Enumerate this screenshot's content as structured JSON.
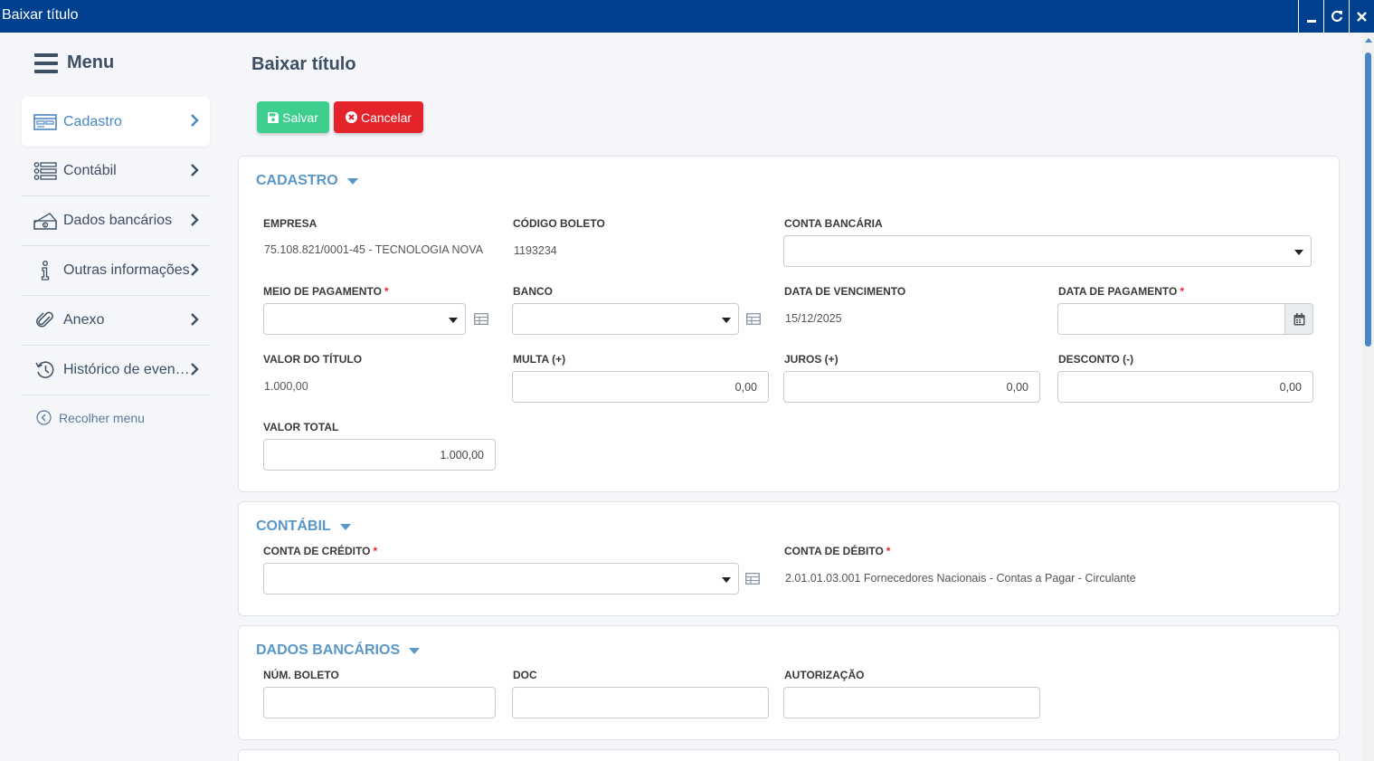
{
  "window": {
    "title": "Baixar título"
  },
  "sidebar": {
    "menu_title": "Menu",
    "items": [
      {
        "label": "Cadastro",
        "icon": "form-card-icon"
      },
      {
        "label": "Contábil",
        "icon": "list-icon"
      },
      {
        "label": "Dados bancários",
        "icon": "money-icon"
      },
      {
        "label": "Outras informações",
        "icon": "info-icon"
      },
      {
        "label": "Anexo",
        "icon": "paperclip-icon"
      },
      {
        "label": "Histórico de eventos",
        "icon": "history-icon"
      }
    ],
    "collapse_label": "Recolher menu"
  },
  "page": {
    "title": "Baixar título"
  },
  "toolbar": {
    "save_label": "Salvar",
    "cancel_label": "Cancelar"
  },
  "cadastro": {
    "section_title": "CADASTRO",
    "empresa_label": "EMPRESA",
    "empresa_value": "75.108.821/0001-45 - TECNOLOGIA NOVA",
    "codigo_boleto_label": "CÓDIGO BOLETO",
    "codigo_boleto_value": "1193234",
    "conta_bancaria_label": "CONTA BANCÁRIA",
    "conta_bancaria_value": "",
    "meio_pagamento_label": "MEIO DE PAGAMENTO",
    "meio_pagamento_value": "",
    "banco_label": "BANCO",
    "banco_value": "",
    "data_vencimento_label": "DATA DE VENCIMENTO",
    "data_vencimento_value": "15/12/2025",
    "data_pagamento_label": "DATA DE PAGAMENTO",
    "data_pagamento_value": "",
    "valor_titulo_label": "VALOR DO TÍTULO",
    "valor_titulo_value": "1.000,00",
    "multa_label": "MULTA (+)",
    "multa_value": "0,00",
    "juros_label": "JUROS (+)",
    "juros_value": "0,00",
    "desconto_label": "DESCONTO (-)",
    "desconto_value": "0,00",
    "valor_total_label": "VALOR TOTAL",
    "valor_total_value": "1.000,00"
  },
  "contabil": {
    "section_title": "CONTÁBIL",
    "conta_credito_label": "CONTA DE CRÉDITO",
    "conta_credito_value": "",
    "conta_debito_label": "CONTA DE DÉBITO",
    "conta_debito_value": "2.01.01.03.001 Fornecedores Nacionais - Contas a Pagar - Circulante"
  },
  "dados_bancarios": {
    "section_title": "DADOS BANCÁRIOS",
    "num_boleto_label": "NÚM. BOLETO",
    "num_boleto_value": "",
    "doc_label": "DOC",
    "doc_value": "",
    "autorizacao_label": "AUTORIZAÇÃO",
    "autorizacao_value": ""
  },
  "required_marker": "*",
  "colors": {
    "titlebar": "#00408f",
    "accent": "#4a86c5",
    "section_title": "#5a97c9",
    "save": "#3ecf8e",
    "cancel": "#e3242b"
  }
}
